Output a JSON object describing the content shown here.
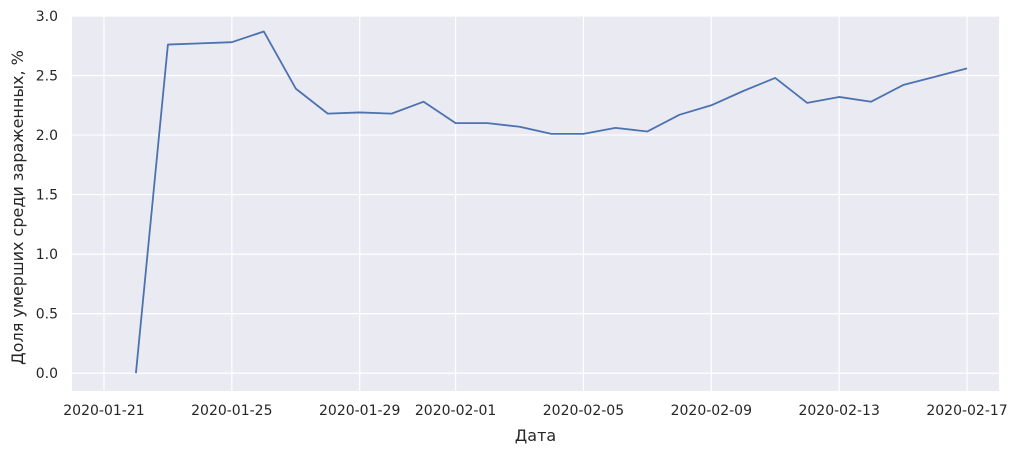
{
  "chart_data": {
    "type": "line",
    "xlabel": "Дата",
    "ylabel": "Доля умерших среди зараженных, %",
    "grid": true,
    "ylim": [
      -0.15,
      3.0
    ],
    "xlim": [
      "2020-01-20",
      "2020-02-18"
    ],
    "xticks": [
      "2020-01-21",
      "2020-01-25",
      "2020-01-29",
      "2020-02-01",
      "2020-02-05",
      "2020-02-09",
      "2020-02-13",
      "2020-02-17"
    ],
    "yticks": [
      "0.0",
      "0.5",
      "1.0",
      "1.5",
      "2.0",
      "2.5",
      "3.0"
    ],
    "colors": {
      "line": "#4c72b0",
      "plot_background": "#eaeaf2",
      "grid": "#ffffff"
    },
    "series": [
      {
        "x": [
          "2020-01-22",
          "2020-01-23",
          "2020-01-24",
          "2020-01-25",
          "2020-01-26",
          "2020-01-27",
          "2020-01-28",
          "2020-01-29",
          "2020-01-30",
          "2020-01-31",
          "2020-02-01",
          "2020-02-02",
          "2020-02-03",
          "2020-02-04",
          "2020-02-05",
          "2020-02-06",
          "2020-02-07",
          "2020-02-08",
          "2020-02-09",
          "2020-02-10",
          "2020-02-11",
          "2020-02-12",
          "2020-02-13",
          "2020-02-14",
          "2020-02-15",
          "2020-02-16",
          "2020-02-17"
        ],
        "values": [
          0.0,
          2.76,
          2.77,
          2.78,
          2.87,
          2.39,
          2.18,
          2.19,
          2.18,
          2.28,
          2.1,
          2.1,
          2.07,
          2.01,
          2.01,
          2.06,
          2.03,
          2.17,
          2.25,
          2.37,
          2.48,
          2.27,
          2.32,
          2.28,
          2.42,
          2.49,
          2.56
        ]
      }
    ]
  }
}
